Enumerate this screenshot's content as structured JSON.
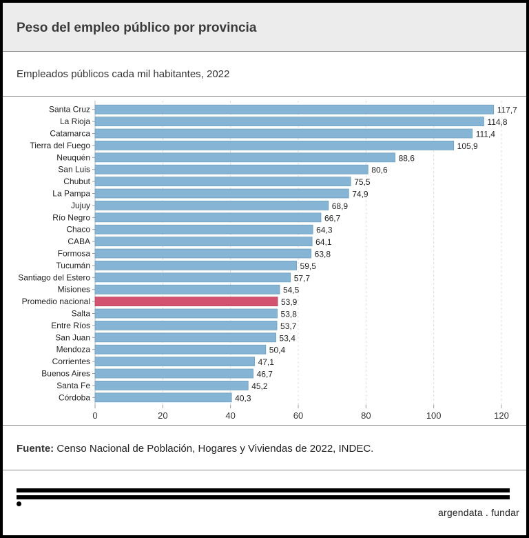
{
  "header": {
    "title": "Peso del empleo público por provincia"
  },
  "subheader": {
    "subtitle": "Empleados públicos cada mil habitantes, 2022"
  },
  "source": {
    "label": "Fuente:",
    "text": " Censo Nacional de Población, Hogares y Viviendas de 2022, INDEC."
  },
  "footer": {
    "brand": "argendata . fundar"
  },
  "colors": {
    "bar": "#85b4d4",
    "highlight": "#d2526f",
    "text": "#222222",
    "grid": "#dddddd"
  },
  "chart_data": {
    "type": "bar",
    "orientation": "horizontal",
    "title": "Peso del empleo público por provincia",
    "subtitle": "Empleados públicos cada mil habitantes, 2022",
    "xlabel": "",
    "ylabel": "",
    "xlim": [
      0,
      120
    ],
    "xticks": [
      0,
      20,
      40,
      60,
      80,
      100,
      120
    ],
    "grid": "vertical dashed",
    "highlight": "Promedio nacional",
    "categories": [
      "Santa Cruz",
      "La Rioja",
      "Catamarca",
      "Tierra del Fuego",
      "Neuquén",
      "San Luis",
      "Chubut",
      "La Pampa",
      "Jujuy",
      "Río Negro",
      "Chaco",
      "CABA",
      "Formosa",
      "Tucumán",
      "Santiago del Estero",
      "Misiones",
      "Promedio nacional",
      "Salta",
      "Entre Ríos",
      "San Juan",
      "Mendoza",
      "Corrientes",
      "Buenos Aires",
      "Santa Fe",
      "Córdoba"
    ],
    "values": [
      117.7,
      114.8,
      111.4,
      105.9,
      88.6,
      80.6,
      75.5,
      74.9,
      68.9,
      66.7,
      64.3,
      64.1,
      63.8,
      59.5,
      57.7,
      54.5,
      53.9,
      53.8,
      53.7,
      53.4,
      50.4,
      47.1,
      46.7,
      45.2,
      40.3
    ],
    "labels": [
      "117,7",
      "114,8",
      "111,4",
      "105,9",
      "88,6",
      "80,6",
      "75,5",
      "74,9",
      "68,9",
      "66,7",
      "64,3",
      "64,1",
      "63,8",
      "59,5",
      "57,7",
      "54,5",
      "53,9",
      "53,8",
      "53,7",
      "53,4",
      "50,4",
      "47,1",
      "46,7",
      "45,2",
      "40,3"
    ]
  }
}
